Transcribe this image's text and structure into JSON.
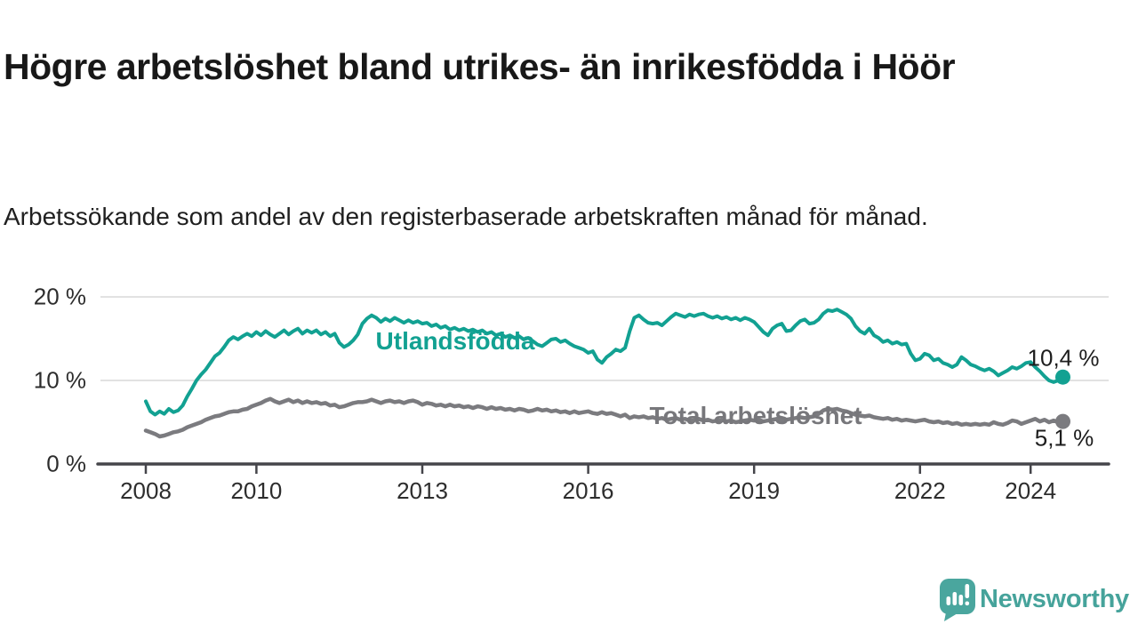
{
  "header": {
    "title": "Högre arbetslöshet bland utrikes- än inrikesfödda i Höör",
    "subtitle": "Arbetssökande som andel av den registerbaserade arbetskraften månad för månad."
  },
  "footer": {
    "brand": "Newsworthy"
  },
  "colors": {
    "accent_teal": "#12a192",
    "line_gray": "#7b7b7f",
    "gray_label": "#77777b",
    "brand_teal": "#4aa69e",
    "grid": "#d9d9d9",
    "axis": "#45454a",
    "text_dark": "#1d1d1d"
  },
  "chart_data": {
    "type": "line",
    "title": "Högre arbetslöshet bland utrikes- än inrikesfödda i Höör",
    "subtitle": "Arbetssökande som andel av den registerbaserade arbetskraften månad för månad.",
    "x_unit": "months, Jan 2008 – Aug 2024",
    "x_start_year": 2008,
    "x_ticks": [
      2008,
      2010,
      2013,
      2016,
      2019,
      2022,
      2024
    ],
    "y_ticks": [
      0,
      10,
      20
    ],
    "y_tick_suffix": " %",
    "ylim": [
      0,
      21.5
    ],
    "grid": "horizontal",
    "legend_position": "inline-labels",
    "series": [
      {
        "name": "Utlandsfödda",
        "color": "#12a192",
        "end_label": "10,4 %",
        "end_value": 10.4,
        "values": [
          7.5,
          6.3,
          5.9,
          6.3,
          6.0,
          6.6,
          6.2,
          6.4,
          7.0,
          8.1,
          9.0,
          10.0,
          10.7,
          11.3,
          12.1,
          12.9,
          13.3,
          14.0,
          14.8,
          15.2,
          14.9,
          15.3,
          15.6,
          15.3,
          15.8,
          15.4,
          15.9,
          15.5,
          15.2,
          15.6,
          16.0,
          15.5,
          15.9,
          16.2,
          15.6,
          16.0,
          15.7,
          16.0,
          15.5,
          15.8,
          15.3,
          15.6,
          14.5,
          14.0,
          14.3,
          14.8,
          15.5,
          16.8,
          17.4,
          17.8,
          17.5,
          17.0,
          17.4,
          17.1,
          17.5,
          17.2,
          16.9,
          17.2,
          16.9,
          17.1,
          16.8,
          16.9,
          16.5,
          16.7,
          16.3,
          16.5,
          16.1,
          16.3,
          16.0,
          16.2,
          15.9,
          16.1,
          15.8,
          16.0,
          15.6,
          15.8,
          15.4,
          15.6,
          15.2,
          15.4,
          15.1,
          15.3,
          14.9,
          15.1,
          14.7,
          14.3,
          14.1,
          14.5,
          14.9,
          15.0,
          14.6,
          14.8,
          14.4,
          14.1,
          13.9,
          13.7,
          13.3,
          13.5,
          12.5,
          12.1,
          12.8,
          13.2,
          13.7,
          13.5,
          13.9,
          15.9,
          17.5,
          17.8,
          17.3,
          16.9,
          16.8,
          16.9,
          16.6,
          17.1,
          17.6,
          18.0,
          17.8,
          17.6,
          17.9,
          17.7,
          17.9,
          18.0,
          17.7,
          17.5,
          17.7,
          17.4,
          17.6,
          17.3,
          17.5,
          17.2,
          17.5,
          17.3,
          17.0,
          16.4,
          15.8,
          15.4,
          16.2,
          16.6,
          16.8,
          15.9,
          16.0,
          16.6,
          17.1,
          17.3,
          16.8,
          16.9,
          17.3,
          18.0,
          18.4,
          18.3,
          18.5,
          18.2,
          17.9,
          17.4,
          16.5,
          15.9,
          15.6,
          16.2,
          15.4,
          15.1,
          14.6,
          14.8,
          14.4,
          14.6,
          14.3,
          14.4,
          13.2,
          12.4,
          12.6,
          13.2,
          13.0,
          12.4,
          12.6,
          12.1,
          11.9,
          11.6,
          11.9,
          12.8,
          12.4,
          11.9,
          11.7,
          11.4,
          11.2,
          11.4,
          11.1,
          10.6,
          10.9,
          11.2,
          11.6,
          11.4,
          11.7,
          12.1,
          12.2,
          11.6,
          11.1,
          10.5,
          10.0,
          9.8,
          10.0,
          10.4
        ]
      },
      {
        "name": "Total arbetslöshet",
        "color": "#7b7b7f",
        "end_label": "5,1 %",
        "end_value": 5.1,
        "values": [
          4.0,
          3.8,
          3.6,
          3.3,
          3.4,
          3.6,
          3.8,
          3.9,
          4.1,
          4.4,
          4.6,
          4.8,
          5.0,
          5.3,
          5.5,
          5.7,
          5.8,
          6.0,
          6.2,
          6.3,
          6.3,
          6.5,
          6.6,
          6.9,
          7.1,
          7.3,
          7.6,
          7.8,
          7.5,
          7.3,
          7.5,
          7.7,
          7.4,
          7.6,
          7.3,
          7.5,
          7.3,
          7.4,
          7.2,
          7.3,
          7.0,
          7.1,
          6.8,
          6.9,
          7.1,
          7.3,
          7.4,
          7.4,
          7.5,
          7.7,
          7.5,
          7.3,
          7.5,
          7.6,
          7.4,
          7.5,
          7.3,
          7.5,
          7.6,
          7.4,
          7.1,
          7.3,
          7.2,
          7.0,
          7.1,
          6.9,
          7.1,
          6.9,
          7.0,
          6.8,
          6.9,
          6.7,
          6.9,
          6.8,
          6.6,
          6.8,
          6.6,
          6.7,
          6.5,
          6.6,
          6.4,
          6.6,
          6.5,
          6.3,
          6.4,
          6.6,
          6.4,
          6.5,
          6.3,
          6.4,
          6.2,
          6.3,
          6.1,
          6.3,
          6.1,
          6.2,
          6.3,
          6.1,
          6.0,
          6.2,
          6.0,
          6.1,
          5.9,
          5.7,
          5.9,
          5.5,
          5.7,
          5.6,
          5.7,
          5.5,
          5.6,
          5.4,
          5.5,
          5.3,
          5.4,
          5.5,
          5.3,
          5.4,
          5.2,
          5.3,
          5.4,
          5.2,
          5.3,
          5.1,
          5.2,
          5.3,
          5.1,
          5.2,
          5.0,
          5.1,
          5.2,
          5.3,
          5.2,
          5.3,
          5.1,
          5.2,
          5.3,
          5.4,
          5.2,
          5.3,
          5.4,
          5.5,
          5.6,
          5.5,
          5.6,
          5.7,
          6.0,
          6.4,
          6.6,
          6.5,
          6.6,
          6.4,
          6.3,
          6.1,
          5.9,
          5.8,
          5.7,
          5.8,
          5.6,
          5.5,
          5.4,
          5.5,
          5.3,
          5.4,
          5.2,
          5.3,
          5.2,
          5.1,
          5.2,
          5.3,
          5.1,
          5.0,
          5.1,
          4.9,
          5.0,
          4.8,
          4.9,
          4.7,
          4.8,
          4.7,
          4.8,
          4.7,
          4.8,
          4.7,
          5.0,
          4.8,
          4.7,
          4.9,
          5.2,
          5.1,
          4.8,
          5.0,
          5.2,
          5.4,
          5.1,
          5.3,
          5.0,
          5.2,
          5.0,
          5.1
        ]
      }
    ]
  }
}
